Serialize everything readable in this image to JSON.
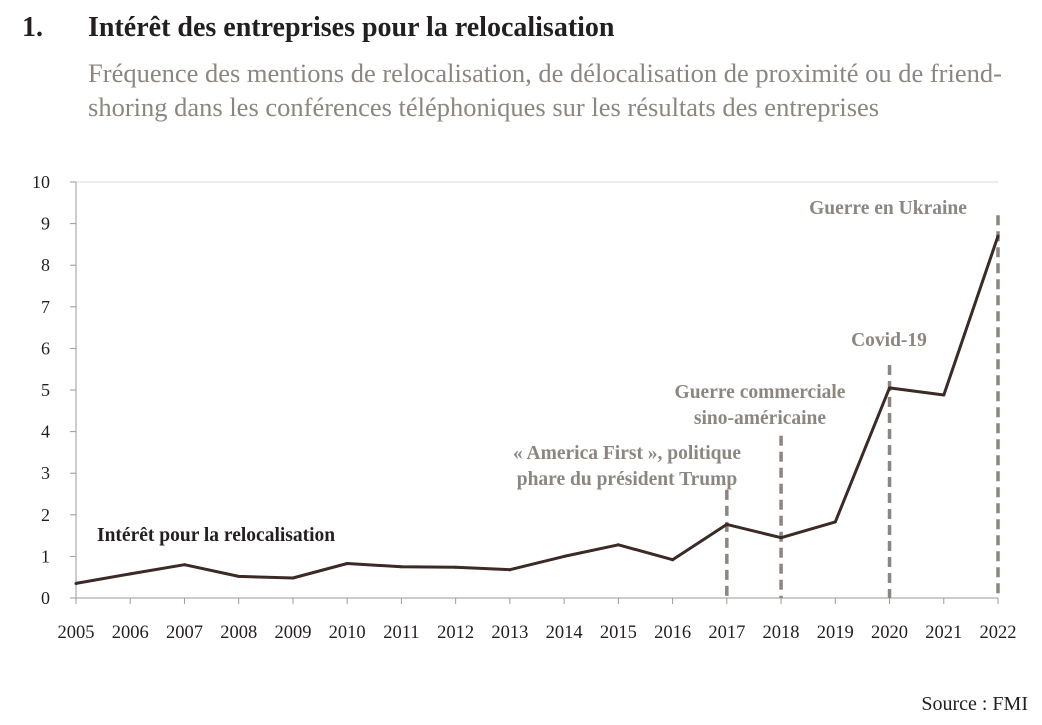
{
  "header": {
    "number": "1.",
    "title": "Intérêt des entreprises pour la relocalisation",
    "subtitle": "Fréquence des mentions de relocalisation, de délocalisation de proximité ou de friend-shoring dans les conférences téléphoniques sur les résultats des entreprises"
  },
  "source": "Source : FMI",
  "colors": {
    "line": "#3b2a26",
    "annotation": "#8c8680",
    "axis": "#9e9a96",
    "grid": "#dddad7",
    "text": "#231f20"
  },
  "chart_data": {
    "type": "line",
    "x": [
      "2005",
      "2006",
      "2007",
      "2008",
      "2009",
      "2010",
      "2011",
      "2012",
      "2013",
      "2014",
      "2015",
      "2016",
      "2017",
      "2018",
      "2019",
      "2020",
      "2021",
      "2022"
    ],
    "series": [
      {
        "name": "Intérêt pour la relocalisation",
        "values": [
          0.35,
          0.58,
          0.8,
          0.52,
          0.48,
          0.83,
          0.75,
          0.74,
          0.68,
          1.0,
          1.28,
          0.92,
          1.77,
          1.45,
          1.83,
          5.05,
          4.88,
          8.7
        ]
      }
    ],
    "yticks": [
      "0",
      "1",
      "2",
      "3",
      "4",
      "5",
      "6",
      "7",
      "8",
      "9",
      "10"
    ],
    "ylim": [
      0,
      10
    ],
    "grid": false,
    "annotations": [
      {
        "x": "2017",
        "lines": [
          "« America First », politique",
          "phare du président Trump"
        ],
        "top": 2.6
      },
      {
        "x": "2018",
        "lines": [
          "Guerre commerciale",
          "sino-américaine"
        ],
        "top": 3.9
      },
      {
        "x": "2020",
        "lines": [
          "Covid-19"
        ],
        "top": 5.6
      },
      {
        "x": "2022",
        "lines": [
          "Guerre en Ukraine"
        ],
        "top": 9.2
      }
    ]
  }
}
